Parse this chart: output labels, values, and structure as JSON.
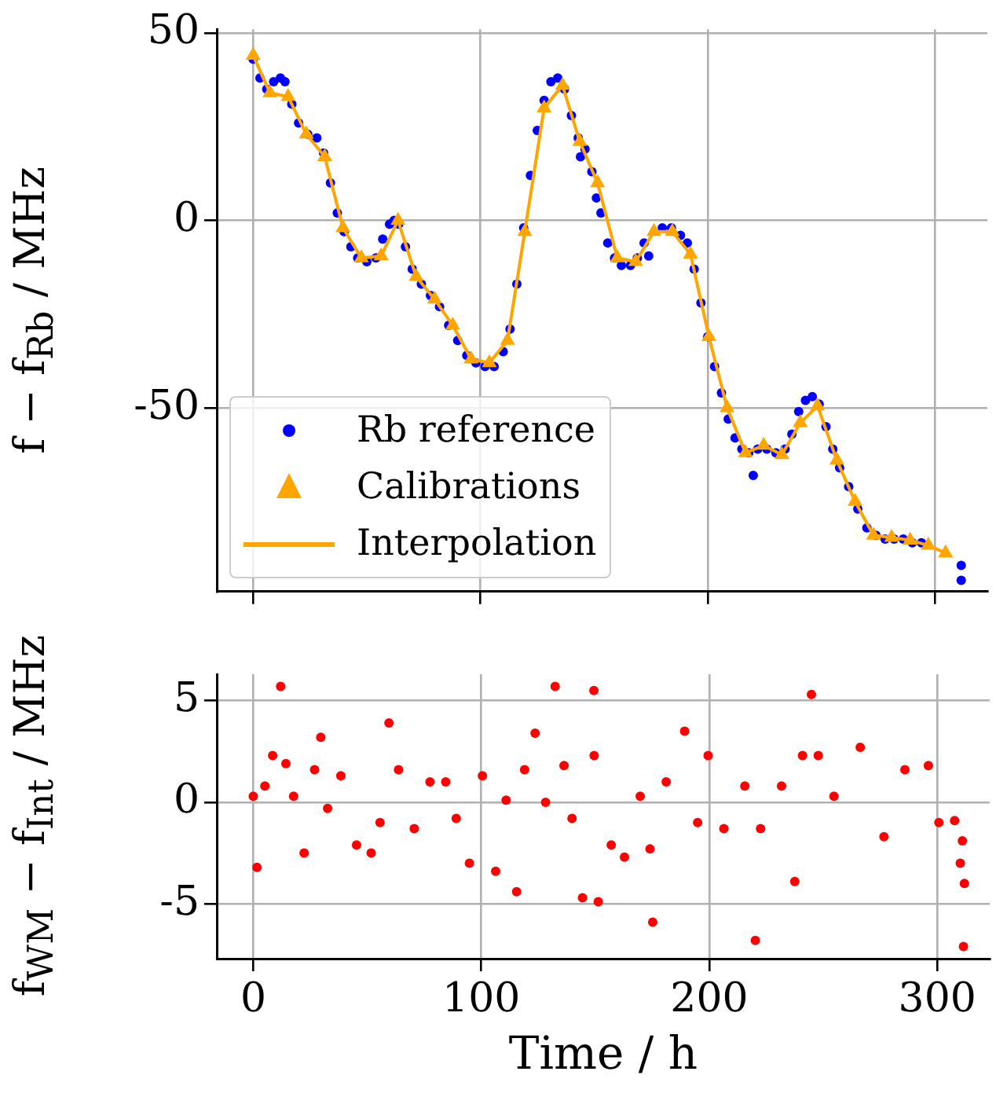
{
  "chart_data": [
    {
      "type": "scatter",
      "ylabel": "f − f$_{Rb}$ / MHz",
      "xlim": [
        -16,
        323
      ],
      "xticks": [
        0,
        100,
        200,
        300
      ],
      "ylim": [
        -99,
        51
      ],
      "yticks": [
        -50,
        0,
        50
      ],
      "grid": true,
      "legend": "bottom left",
      "tick_labels": "y",
      "series": [
        {
          "name": "Rb reference",
          "color": "#0000ff",
          "marker": "circle",
          "x": [
            0,
            3,
            6,
            9,
            12,
            14,
            17,
            20,
            24,
            28,
            31,
            34,
            37,
            40,
            43,
            46,
            50,
            54,
            57,
            60,
            62,
            64,
            67,
            70,
            74,
            78,
            82,
            86,
            90,
            94,
            98,
            102,
            106,
            110,
            113,
            116,
            119,
            122,
            125,
            128,
            131,
            134,
            137,
            140,
            143,
            144,
            146,
            149,
            151,
            153,
            156,
            159,
            162,
            166,
            169,
            172,
            174,
            180,
            184,
            188,
            191,
            194,
            197,
            200,
            203,
            206,
            209,
            212,
            215,
            218,
            220,
            222,
            226,
            230,
            234,
            237,
            240,
            243,
            246,
            249,
            252,
            255,
            258,
            262,
            266,
            270,
            274,
            278,
            282,
            286,
            290,
            294,
            311.5,
            311.5
          ],
          "values": [
            43,
            38,
            35,
            37,
            38,
            37,
            31,
            26,
            23,
            22,
            18,
            10,
            2,
            -3,
            -7,
            -10,
            -11,
            -10,
            -5,
            -1,
            0,
            -1,
            -7,
            -13,
            -17,
            -20,
            -23,
            -28,
            -32,
            -36,
            -38,
            -39,
            -39,
            -35,
            -29,
            -17,
            -2,
            12,
            24,
            32,
            37,
            38,
            35,
            28,
            22,
            17,
            19,
            13,
            6,
            2,
            -6,
            -10,
            -12,
            -12,
            -10,
            -6,
            -9.5,
            -2,
            -2,
            -4,
            -6,
            -13,
            -22,
            -31,
            -39,
            -46,
            -53,
            -58,
            -61,
            -62,
            -68,
            -61,
            -61,
            -62,
            -61,
            -57,
            -51,
            -48,
            -47,
            -49,
            -55,
            -61,
            -66,
            -71,
            -77,
            -82,
            -84,
            -85,
            -85,
            -85,
            -86,
            -86,
            -92,
            -96
          ]
        },
        {
          "name": "Calibrations",
          "color": "#ffa500",
          "marker": "triangle",
          "x": [
            0,
            7.4,
            15.4,
            23.4,
            31.5,
            39.5,
            47.6,
            56.3,
            63.7,
            71.7,
            79.8,
            87.8,
            95.9,
            103.9,
            111.9,
            119.5,
            128,
            136.1,
            143.7,
            151.5,
            160.2,
            168.3,
            176.3,
            184.4,
            192.4,
            200.5,
            208.5,
            216.6,
            224.6,
            232.6,
            240.7,
            248.3,
            256.8,
            264.8,
            272.9,
            280.9,
            289,
            297,
            304.6
          ],
          "values": [
            44,
            34,
            33,
            23,
            17,
            -2,
            -10,
            -9.5,
            0,
            -15,
            -21,
            -28,
            -37,
            -38,
            -32,
            -3,
            30,
            36,
            21,
            10,
            -10,
            -11,
            -3,
            -3,
            -9,
            -31,
            -50,
            -62,
            -60,
            -62.5,
            -54,
            -49.5,
            -64,
            -75,
            -84,
            -84.6,
            -85.3,
            -86.7,
            -88.7
          ]
        },
        {
          "name": "Interpolation",
          "type": "line",
          "color": "#ffa500",
          "marker": "none",
          "line_style": "solid",
          "x": [
            0,
            7.4,
            15.4,
            23.4,
            31.5,
            39.5,
            47.6,
            56.3,
            63.7,
            71.7,
            79.8,
            87.8,
            95.9,
            103.9,
            111.9,
            119.5,
            128,
            136.1,
            143.7,
            151.5,
            160.2,
            168.3,
            176.3,
            184.4,
            192.4,
            200.5,
            208.5,
            216.6,
            224.6,
            232.6,
            240.7,
            248.3,
            256.8,
            264.8,
            272.9,
            280.9,
            289,
            297,
            304.6
          ],
          "values": [
            44,
            34,
            33,
            23,
            17,
            -2,
            -10,
            -9.5,
            0,
            -15,
            -21,
            -28,
            -37,
            -38,
            -32,
            -3,
            30,
            36,
            21,
            10,
            -10,
            -11,
            -3,
            -3,
            -9,
            -31,
            -50,
            -62,
            -60,
            -62.5,
            -54,
            -49.5,
            -64,
            -75,
            -84,
            -84.6,
            -85.3,
            -86.7,
            -88.7
          ]
        }
      ]
    },
    {
      "type": "scatter",
      "xlabel": "Time / h",
      "ylabel": "f$_{WM}$ − f$_{Int}$ / MHz",
      "xlim": [
        -16,
        323
      ],
      "xticks": [
        0,
        100,
        200,
        300
      ],
      "ylim": [
        -7.7,
        6.3
      ],
      "yticks": [
        -5,
        0,
        5
      ],
      "grid": true,
      "series": [
        {
          "color": "#ff0000",
          "marker": "circle",
          "x": [
            0,
            1.6,
            5.1,
            8.5,
            12,
            14.3,
            17.7,
            22.3,
            26.9,
            29.6,
            32.6,
            38.4,
            45.3,
            51.7,
            55.6,
            59.5,
            63.7,
            70.6,
            77.5,
            84.4,
            89,
            94.8,
            100.5,
            106.3,
            110.9,
            115.5,
            119,
            123.6,
            128.2,
            132.4,
            136.3,
            139.8,
            144.4,
            149.4,
            149.5,
            151.3,
            157,
            162.8,
            169.7,
            174,
            175.2,
            181.1,
            189.2,
            194.9,
            199.5,
            206.4,
            215.6,
            220.2,
            222.5,
            231.7,
            237.5,
            240.9,
            244.8,
            247.8,
            254.7,
            266.2,
            276.6,
            285.8,
            296.1,
            300.7,
            307.6,
            311,
            310.1,
            311.9,
            311.5
          ],
          "values": [
            0.3,
            -3.2,
            0.8,
            2.3,
            5.7,
            1.9,
            0.3,
            -2.5,
            1.6,
            3.2,
            -0.3,
            1.3,
            -2.1,
            -2.5,
            -1,
            3.9,
            1.6,
            -1.3,
            1,
            1,
            -0.8,
            -3,
            1.3,
            -3.4,
            0.1,
            -4.4,
            1.6,
            3.4,
            0,
            5.7,
            1.8,
            -0.8,
            -4.7,
            5.5,
            2.3,
            -4.9,
            -2.1,
            -2.7,
            0.3,
            -2.3,
            -5.9,
            1,
            3.5,
            -1,
            2.3,
            -1.3,
            0.8,
            -6.8,
            -1.3,
            0.8,
            -3.9,
            2.3,
            5.3,
            2.3,
            0.3,
            2.7,
            -1.7,
            1.6,
            1.8,
            -1,
            -0.9,
            -1.9,
            -3,
            -4,
            -7.1
          ]
        }
      ]
    }
  ]
}
